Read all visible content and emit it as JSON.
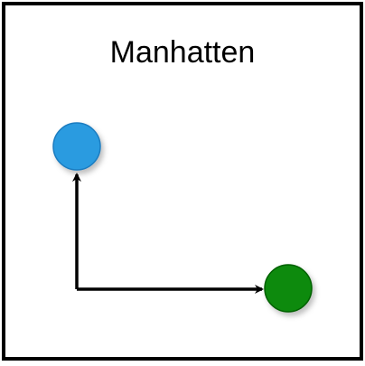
{
  "diagram": {
    "title": "Manhatten",
    "colors": {
      "border": "#000000",
      "background": "#ffffff",
      "start_node": "#2a9be0",
      "end_node": "#0a8a0a",
      "path": "#000000"
    },
    "nodes": [
      {
        "id": "start",
        "shape": "circle",
        "label": ""
      },
      {
        "id": "end",
        "shape": "circle",
        "label": ""
      }
    ],
    "edges": [
      {
        "from": "corner",
        "to": "start",
        "style": "arrow",
        "direction": "up"
      },
      {
        "from": "corner",
        "to": "end",
        "style": "arrow",
        "direction": "right"
      }
    ]
  }
}
